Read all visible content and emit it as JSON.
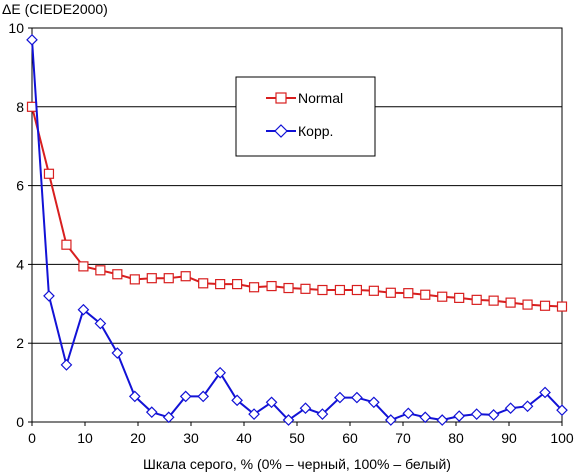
{
  "chart_data": {
    "type": "line",
    "title": "",
    "ylabel": "ΔE (CIEDE2000)",
    "xlabel": "Шкала серого, % (0% – черный, 100% – белый)",
    "xlim": [
      0,
      100
    ],
    "ylim": [
      0,
      10
    ],
    "xticks": [
      0,
      10,
      20,
      30,
      40,
      50,
      60,
      70,
      80,
      90,
      100
    ],
    "yticks": [
      0,
      2,
      4,
      6,
      8,
      10
    ],
    "grid": "horizontal",
    "legend_position": "upper-center",
    "x": [
      0,
      3.2,
      6.5,
      9.7,
      12.9,
      16.1,
      19.4,
      22.6,
      25.8,
      29.0,
      32.3,
      35.5,
      38.7,
      41.9,
      45.2,
      48.4,
      51.6,
      54.8,
      58.1,
      61.3,
      64.5,
      67.7,
      71.0,
      74.2,
      77.4,
      80.6,
      83.9,
      87.1,
      90.3,
      93.5,
      96.8,
      100
    ],
    "series": [
      {
        "name": "Normal",
        "color": "#d81f1f",
        "marker": "square",
        "values": [
          8.0,
          6.3,
          4.5,
          3.95,
          3.85,
          3.75,
          3.62,
          3.65,
          3.65,
          3.7,
          3.52,
          3.5,
          3.5,
          3.42,
          3.45,
          3.4,
          3.38,
          3.35,
          3.35,
          3.35,
          3.33,
          3.28,
          3.27,
          3.23,
          3.18,
          3.15,
          3.1,
          3.08,
          3.03,
          2.98,
          2.95,
          2.93
        ]
      },
      {
        "name": "Корр.",
        "color": "#1212d6",
        "marker": "diamond",
        "values": [
          9.7,
          3.2,
          1.45,
          2.85,
          2.5,
          1.75,
          0.65,
          0.25,
          0.12,
          0.65,
          0.65,
          1.25,
          0.55,
          0.2,
          0.5,
          0.05,
          0.35,
          0.2,
          0.62,
          0.62,
          0.5,
          0.05,
          0.22,
          0.12,
          0.05,
          0.15,
          0.2,
          0.18,
          0.35,
          0.4,
          0.75,
          0.3
        ]
      }
    ]
  }
}
